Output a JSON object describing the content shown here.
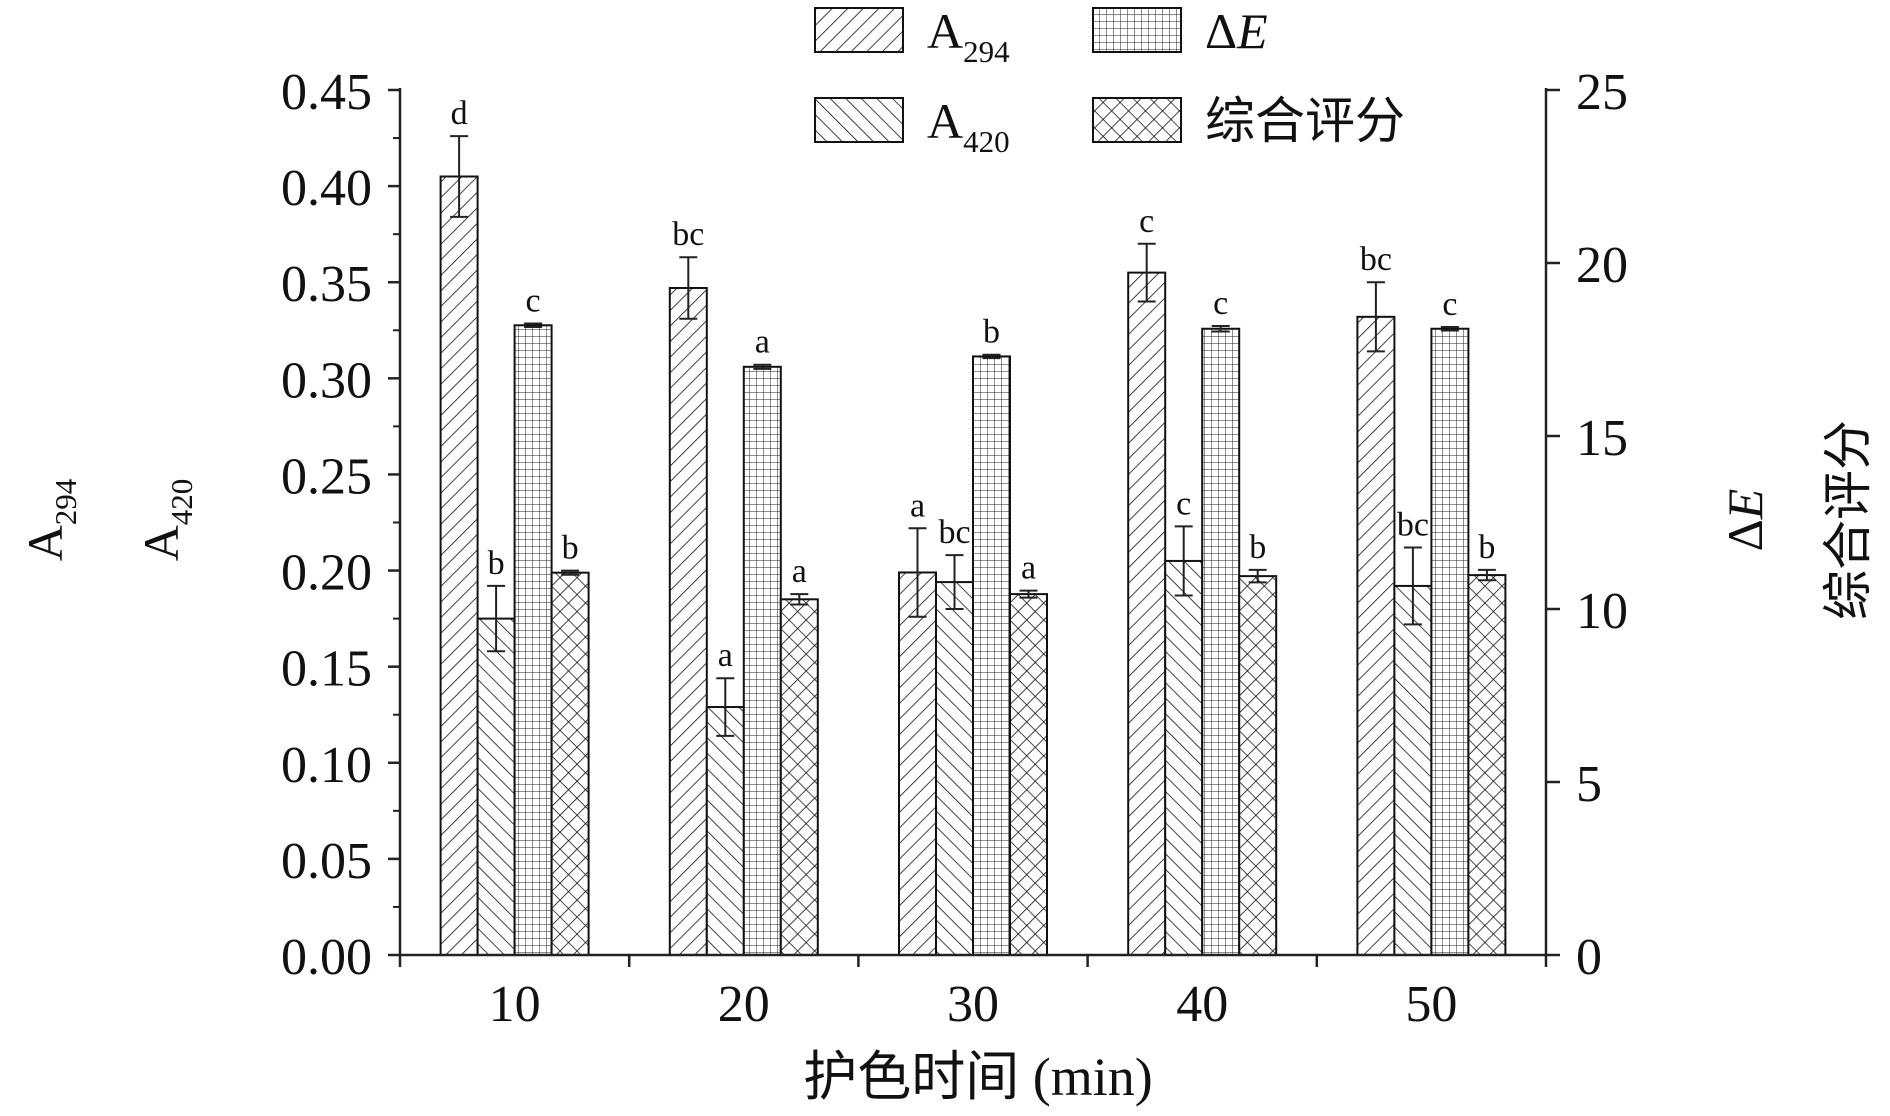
{
  "chart_data": {
    "type": "bar",
    "xlabel": "护色时间 (min)",
    "categories": [
      "10",
      "20",
      "30",
      "40",
      "50"
    ],
    "left_axis": {
      "labels": [
        {
          "main": "A",
          "sub": "294"
        },
        {
          "main": "A",
          "sub": "420"
        }
      ],
      "ylim": [
        0,
        0.45
      ],
      "ticks": [
        "0.00",
        "0.05",
        "0.10",
        "0.15",
        "0.20",
        "0.25",
        "0.30",
        "0.35",
        "0.40",
        "0.45"
      ]
    },
    "right_axis": {
      "labels": [
        {
          "main": "ΔE",
          "italic_part": "E"
        },
        {
          "main": "综合评分"
        }
      ],
      "ylim": [
        0,
        25
      ],
      "ticks": [
        "0",
        "5",
        "10",
        "15",
        "20",
        "25"
      ]
    },
    "legend_position": "top",
    "series": [
      {
        "key": "A294",
        "legend": {
          "main": "A",
          "sub": "294"
        },
        "axis": "left",
        "pattern": "forward-diagonal",
        "values": [
          0.405,
          0.347,
          0.199,
          0.355,
          0.332
        ],
        "errors": [
          0.021,
          0.016,
          0.023,
          0.015,
          0.018
        ],
        "letters": [
          "d",
          "bc",
          "a",
          "c",
          "bc"
        ]
      },
      {
        "key": "A420",
        "legend": {
          "main": "A",
          "sub": "420"
        },
        "axis": "left",
        "pattern": "backward-diagonal",
        "values": [
          0.175,
          0.129,
          0.194,
          0.205,
          0.192
        ],
        "errors": [
          0.017,
          0.015,
          0.014,
          0.018,
          0.02
        ],
        "letters": [
          "b",
          "a",
          "bc",
          "c",
          "bc"
        ]
      },
      {
        "key": "dE",
        "legend": {
          "main": "ΔE",
          "italic_part": "E"
        },
        "axis": "right",
        "pattern": "grid",
        "values": [
          18.2,
          17.0,
          17.3,
          18.1,
          18.1
        ],
        "errors": [
          0.05,
          0.06,
          0.05,
          0.08,
          0.05
        ],
        "letters": [
          "c",
          "a",
          "b",
          "c",
          "c"
        ]
      },
      {
        "key": "score",
        "legend": {
          "main": "综合评分"
        },
        "axis": "right",
        "pattern": "cross-hatch",
        "values": [
          11.05,
          10.28,
          10.43,
          10.95,
          10.98
        ],
        "errors": [
          0.06,
          0.15,
          0.1,
          0.18,
          0.15
        ],
        "letters": [
          "b",
          "a",
          "a",
          "b",
          "b"
        ]
      }
    ]
  }
}
